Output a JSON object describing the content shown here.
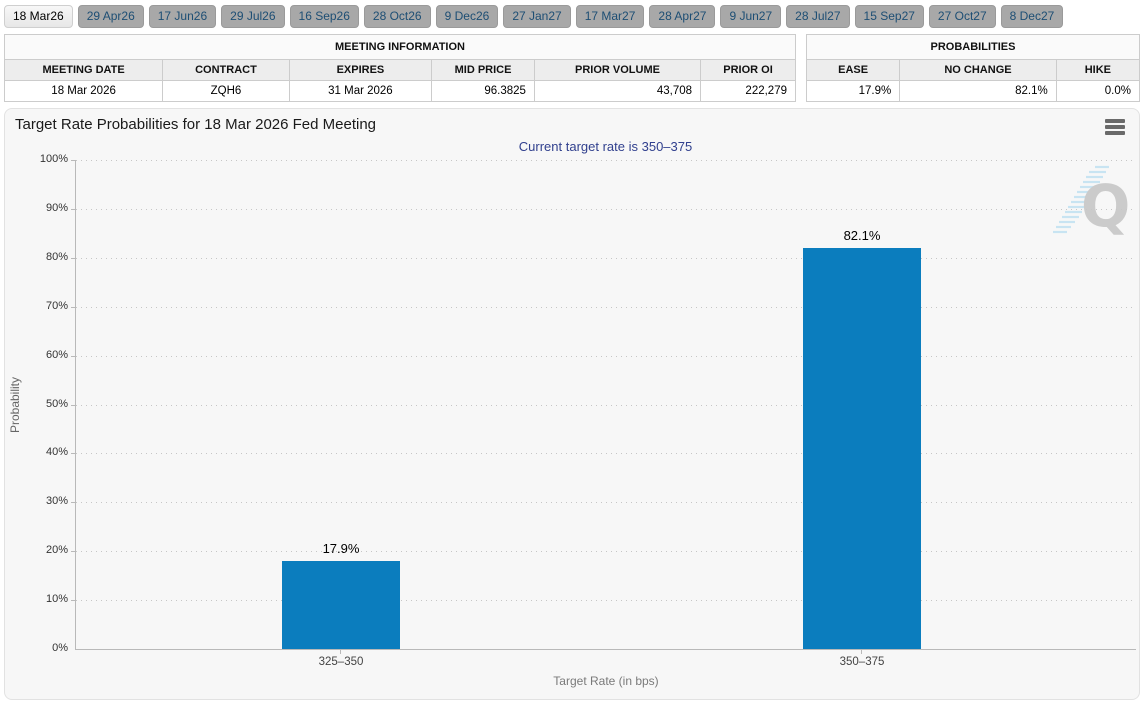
{
  "tabs": {
    "items": [
      {
        "label": "18 Mar26",
        "active": true
      },
      {
        "label": "29 Apr26",
        "active": false
      },
      {
        "label": "17 Jun26",
        "active": false
      },
      {
        "label": "29 Jul26",
        "active": false
      },
      {
        "label": "16 Sep26",
        "active": false
      },
      {
        "label": "28 Oct26",
        "active": false
      },
      {
        "label": "9 Dec26",
        "active": false
      },
      {
        "label": "27 Jan27",
        "active": false
      },
      {
        "label": "17 Mar27",
        "active": false
      },
      {
        "label": "28 Apr27",
        "active": false
      },
      {
        "label": "9 Jun27",
        "active": false
      },
      {
        "label": "28 Jul27",
        "active": false
      },
      {
        "label": "15 Sep27",
        "active": false
      },
      {
        "label": "27 Oct27",
        "active": false
      },
      {
        "label": "8 Dec27",
        "active": false
      }
    ]
  },
  "meeting_info": {
    "title": "MEETING INFORMATION",
    "columns": [
      "MEETING DATE",
      "CONTRACT",
      "EXPIRES",
      "MID PRICE",
      "PRIOR VOLUME",
      "PRIOR OI"
    ],
    "row": {
      "meeting_date": "18 Mar 2026",
      "contract": "ZQH6",
      "expires": "31 Mar 2026",
      "mid_price": "96.3825",
      "prior_volume": "43,708",
      "prior_oi": "222,279"
    }
  },
  "probabilities": {
    "title": "PROBABILITIES",
    "columns": [
      "EASE",
      "NO CHANGE",
      "HIKE"
    ],
    "row": {
      "ease": "17.9%",
      "no_change": "82.1%",
      "hike": "0.0%"
    }
  },
  "chart": {
    "title": "Target Rate Probabilities for 18 Mar 2026 Fed Meeting",
    "subtitle": "Current target rate is 350–375",
    "menu_icon": "hamburger-menu-icon",
    "watermark": "quikstrike-q-logo"
  },
  "chart_data": {
    "type": "bar",
    "categories": [
      "325–350",
      "350–375"
    ],
    "values": [
      17.9,
      82.1
    ],
    "value_labels": [
      "17.9%",
      "82.1%"
    ],
    "title": "Target Rate Probabilities for 18 Mar 2026 Fed Meeting",
    "subtitle": "Current target rate is 350–375",
    "xlabel": "Target Rate (in bps)",
    "ylabel": "Probability",
    "ylim": [
      0,
      100
    ],
    "yticks": [
      "100%",
      "90%",
      "80%",
      "70%",
      "60%",
      "50%",
      "40%",
      "30%",
      "20%",
      "10%",
      "0%"
    ],
    "bar_color": "#0b7dbe",
    "grid": "dotted-horizontal",
    "legend": "none"
  },
  "colors": {
    "bar_blue": "#0b7dbe",
    "subtitle_blue": "#31408e",
    "tab_inactive_bg": "#a8a8a8",
    "tab_text_blue": "#1d4e74",
    "panel_bg": "#f7f7f7"
  }
}
